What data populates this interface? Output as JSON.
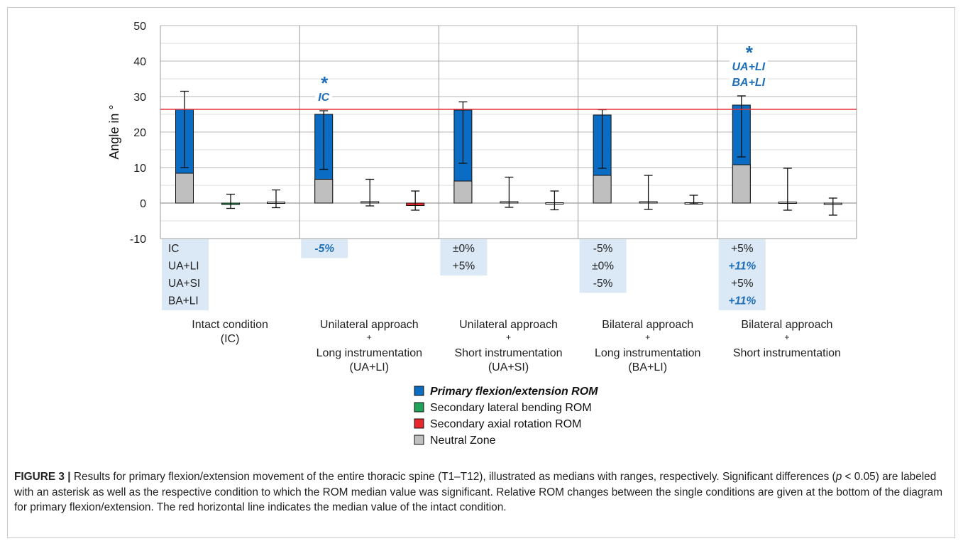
{
  "chart_data": {
    "type": "bar",
    "ylabel": "Angle in °",
    "ylim": [
      -10,
      50
    ],
    "yticks": [
      -10,
      0,
      10,
      20,
      30,
      40,
      50
    ],
    "grid": true,
    "reference_line": {
      "value": 26.4,
      "color": "#e8303a"
    },
    "groups": [
      {
        "label_lines": [
          "Intact  condition",
          "(IC)"
        ]
      },
      {
        "label_lines": [
          "Unilateral approach",
          "+",
          "Long instrumentation",
          "(UA+LI)"
        ]
      },
      {
        "label_lines": [
          "Unilateral approach",
          "+",
          "Short instrumentation",
          "(UA+SI)"
        ]
      },
      {
        "label_lines": [
          "Bilateral approach",
          "+",
          "Long instrumentation",
          "(BA+LI)"
        ]
      },
      {
        "label_lines": [
          "Bilateral approach",
          "+",
          "Short instrumentation"
        ]
      }
    ],
    "series": [
      {
        "name": "Primary flexion/extension ROM",
        "color": "#0a6cc2",
        "values": [
          26.4,
          25.0,
          26.2,
          24.8,
          27.6
        ],
        "range_low": [
          10.0,
          9.5,
          11.2,
          9.8,
          13.0
        ],
        "range_high": [
          31.5,
          26.0,
          28.5,
          26.3,
          30.2
        ]
      },
      {
        "name": "Secondary lateral bending ROM",
        "color": "#1fa35b",
        "values": [
          -0.4,
          0.4,
          0.4,
          0.4,
          0.3
        ],
        "range_low": [
          -1.5,
          -0.8,
          -1.2,
          -1.8,
          -2.0
        ],
        "range_high": [
          2.5,
          6.7,
          7.3,
          7.8,
          9.8
        ]
      },
      {
        "name": "Secondary axial rotation ROM",
        "color": "#e8262c",
        "values": [
          0.3,
          -0.7,
          0.1,
          0.1,
          -0.4
        ],
        "range_low": [
          -1.3,
          -2.0,
          -1.9,
          -0.2,
          -3.4
        ],
        "range_high": [
          3.7,
          3.4,
          3.4,
          2.2,
          1.4
        ]
      },
      {
        "name": "Neutral Zone",
        "color": "#bfbfbf",
        "values": [
          8.4,
          6.7,
          6.2,
          7.8,
          10.8
        ]
      }
    ],
    "significance": [
      {
        "group": 1,
        "marks": [
          "*",
          "IC"
        ]
      },
      {
        "group": 4,
        "marks": [
          "*",
          "UA+LI",
          "BA+LI"
        ]
      }
    ],
    "relative_changes": [
      {
        "group": 0,
        "rows": [
          {
            "text": "IC",
            "sig": false
          },
          {
            "text": "UA+LI",
            "sig": false
          },
          {
            "text": "UA+SI",
            "sig": false
          },
          {
            "text": "BA+LI",
            "sig": false
          }
        ]
      },
      {
        "group": 1,
        "rows": [
          {
            "text": "-5%",
            "sig": true
          }
        ]
      },
      {
        "group": 2,
        "rows": [
          {
            "text": "±0%",
            "sig": false
          },
          {
            "text": "+5%",
            "sig": false
          }
        ]
      },
      {
        "group": 3,
        "rows": [
          {
            "text": "-5%",
            "sig": false
          },
          {
            "text": "±0%",
            "sig": false
          },
          {
            "text": "-5%",
            "sig": false
          }
        ]
      },
      {
        "group": 4,
        "rows": [
          {
            "text": "+5%",
            "sig": false
          },
          {
            "text": "+11%",
            "sig": true
          },
          {
            "text": "+5%",
            "sig": false
          },
          {
            "text": "+11%",
            "sig": true
          }
        ]
      }
    ],
    "legend_position": "bottom-center",
    "colors": {
      "significant_text": "#1f6fb8",
      "table_bg": "#dbe9f6"
    }
  },
  "caption": {
    "label": "FIGURE 3 |",
    "part1": " Results for primary flexion/extension movement of the entire thoracic spine (T1–T12), illustrated as medians with ranges, respectively. Significant differences (",
    "p_symbol": "p",
    "part2": " < 0.05) are labeled with an asterisk as well as the respective condition to which the ROM median value was significant. Relative ROM changes between the single conditions are given at the bottom of the diagram for primary flexion/extension. The red horizontal line indicates the median value of the intact condition."
  }
}
